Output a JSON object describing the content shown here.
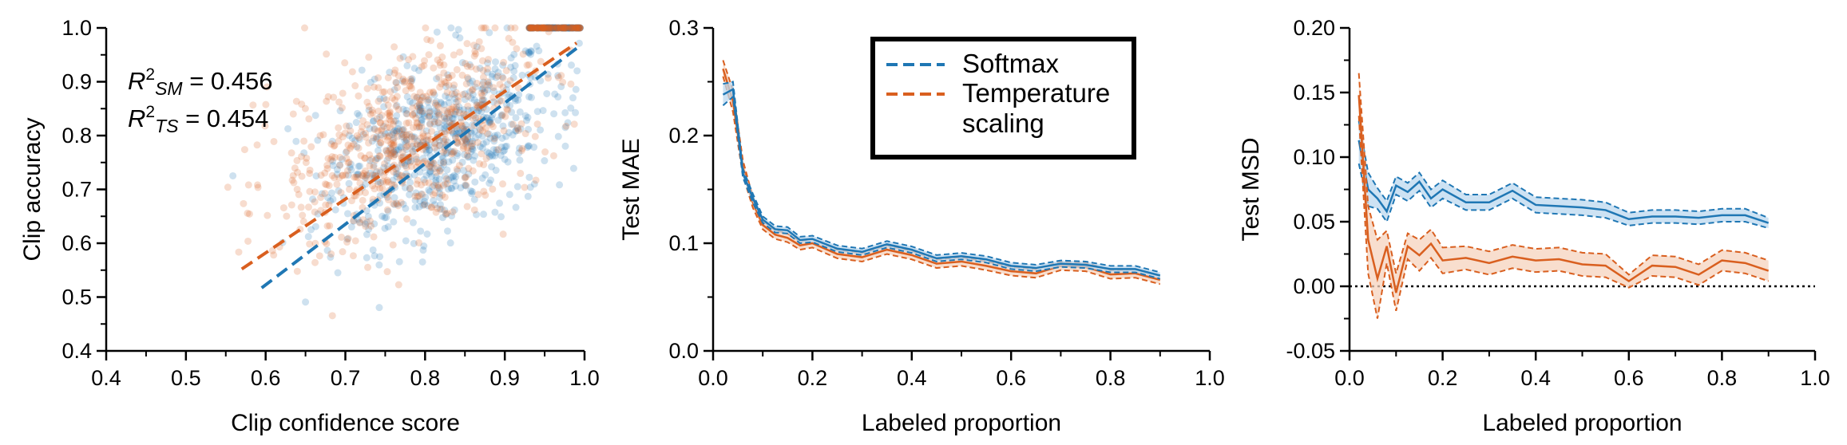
{
  "colors": {
    "softmax": "#1f77b4",
    "temperature": "#d95f1f",
    "softmax_fill": "#bcd8ef",
    "temperature_fill": "#f6d3bd"
  },
  "chart_data": [
    {
      "type": "scatter",
      "xlabel": "Clip confidence score",
      "ylabel": "Clip accuracy",
      "xlim": [
        0.4,
        1.0
      ],
      "ylim": [
        0.4,
        1.0
      ],
      "xticks": [
        "0.4",
        "0.5",
        "0.6",
        "0.7",
        "0.8",
        "0.9",
        "1.0"
      ],
      "yticks": [
        "0.4",
        "0.5",
        "0.6",
        "0.7",
        "0.8",
        "0.9",
        "1.0"
      ],
      "annotations": [
        {
          "base": "R",
          "sup": "2",
          "sub": "SM",
          "text": " = 0.456"
        },
        {
          "base": "R",
          "sup": "2",
          "sub": "TS",
          "text": " = 0.454"
        }
      ],
      "series": [
        {
          "key": "softmax",
          "scatter_center": [
            0.82,
            0.78
          ],
          "scatter_spread": [
            0.075,
            0.11
          ],
          "fit_line": [
            [
              0.595,
              0.517
            ],
            [
              0.99,
              0.962
            ]
          ]
        },
        {
          "key": "temperature",
          "scatter_center": [
            0.78,
            0.79
          ],
          "scatter_spread": [
            0.085,
            0.115
          ],
          "fit_line": [
            [
              0.57,
              0.552
            ],
            [
              0.99,
              0.972
            ]
          ]
        }
      ],
      "grid": false
    },
    {
      "type": "line",
      "xlabel": "Labeled proportion",
      "ylabel": "Test MAE",
      "xlim": [
        0.0,
        1.0
      ],
      "ylim": [
        0.0,
        0.3
      ],
      "xticks": [
        "0.0",
        "0.2",
        "0.4",
        "0.6",
        "0.8",
        "1.0"
      ],
      "yticks": [
        "0.0",
        "0.1",
        "0.2",
        "0.3"
      ],
      "legend": {
        "placement": "top-center",
        "entries": [
          {
            "key": "softmax",
            "lines": [
              "Softmax"
            ]
          },
          {
            "key": "temperature",
            "lines": [
              "Temperature",
              "scaling"
            ]
          }
        ]
      },
      "x": [
        0.02,
        0.04,
        0.06,
        0.08,
        0.1,
        0.125,
        0.15,
        0.175,
        0.2,
        0.25,
        0.3,
        0.35,
        0.4,
        0.45,
        0.5,
        0.55,
        0.6,
        0.65,
        0.7,
        0.75,
        0.8,
        0.85,
        0.9
      ],
      "series": [
        {
          "key": "softmax",
          "values": [
            0.238,
            0.243,
            0.165,
            0.142,
            0.122,
            0.113,
            0.112,
            0.103,
            0.104,
            0.095,
            0.092,
            0.099,
            0.094,
            0.086,
            0.088,
            0.085,
            0.079,
            0.077,
            0.081,
            0.08,
            0.076,
            0.076,
            0.07
          ],
          "lower": [
            0.228,
            0.236,
            0.161,
            0.138,
            0.119,
            0.11,
            0.109,
            0.1,
            0.101,
            0.092,
            0.089,
            0.096,
            0.091,
            0.083,
            0.085,
            0.082,
            0.076,
            0.074,
            0.078,
            0.077,
            0.073,
            0.073,
            0.067
          ],
          "upper": [
            0.248,
            0.25,
            0.169,
            0.146,
            0.125,
            0.116,
            0.115,
            0.106,
            0.107,
            0.098,
            0.095,
            0.102,
            0.097,
            0.089,
            0.091,
            0.088,
            0.082,
            0.08,
            0.084,
            0.083,
            0.079,
            0.079,
            0.073
          ]
        },
        {
          "key": "temperature",
          "values": [
            0.262,
            0.232,
            0.17,
            0.138,
            0.117,
            0.108,
            0.105,
            0.098,
            0.1,
            0.09,
            0.087,
            0.094,
            0.089,
            0.081,
            0.083,
            0.079,
            0.074,
            0.072,
            0.079,
            0.078,
            0.071,
            0.072,
            0.066
          ],
          "lower": [
            0.255,
            0.222,
            0.163,
            0.133,
            0.113,
            0.104,
            0.101,
            0.094,
            0.096,
            0.086,
            0.083,
            0.09,
            0.085,
            0.077,
            0.079,
            0.075,
            0.07,
            0.068,
            0.075,
            0.074,
            0.067,
            0.068,
            0.062
          ],
          "upper": [
            0.27,
            0.242,
            0.177,
            0.143,
            0.121,
            0.112,
            0.109,
            0.102,
            0.104,
            0.094,
            0.091,
            0.098,
            0.093,
            0.085,
            0.087,
            0.083,
            0.078,
            0.076,
            0.083,
            0.082,
            0.075,
            0.076,
            0.07
          ]
        }
      ],
      "grid": false
    },
    {
      "type": "line",
      "xlabel": "Labeled proportion",
      "ylabel": "Test MSD",
      "xlim": [
        0.0,
        1.0
      ],
      "ylim": [
        -0.05,
        0.2
      ],
      "xticks": [
        "0.0",
        "0.2",
        "0.4",
        "0.6",
        "0.8",
        "1.0"
      ],
      "yticks": [
        "-0.05",
        "0.00",
        "0.05",
        "0.10",
        "0.15",
        "0.20"
      ],
      "reference_line": 0.0,
      "x": [
        0.02,
        0.04,
        0.06,
        0.08,
        0.1,
        0.125,
        0.15,
        0.175,
        0.2,
        0.25,
        0.3,
        0.35,
        0.4,
        0.45,
        0.5,
        0.55,
        0.6,
        0.65,
        0.7,
        0.75,
        0.8,
        0.85,
        0.9
      ],
      "series": [
        {
          "key": "softmax",
          "values": [
            0.113,
            0.075,
            0.068,
            0.058,
            0.078,
            0.073,
            0.081,
            0.068,
            0.075,
            0.065,
            0.065,
            0.074,
            0.063,
            0.062,
            0.061,
            0.059,
            0.052,
            0.054,
            0.054,
            0.053,
            0.055,
            0.055,
            0.049
          ],
          "lower": [
            0.095,
            0.062,
            0.06,
            0.05,
            0.071,
            0.066,
            0.074,
            0.061,
            0.068,
            0.059,
            0.059,
            0.068,
            0.057,
            0.056,
            0.055,
            0.053,
            0.047,
            0.049,
            0.049,
            0.048,
            0.05,
            0.05,
            0.045
          ],
          "upper": [
            0.128,
            0.088,
            0.076,
            0.066,
            0.085,
            0.08,
            0.088,
            0.075,
            0.082,
            0.071,
            0.071,
            0.08,
            0.069,
            0.068,
            0.067,
            0.065,
            0.057,
            0.059,
            0.059,
            0.058,
            0.06,
            0.06,
            0.053
          ]
        },
        {
          "key": "temperature",
          "values": [
            0.148,
            0.036,
            0.006,
            0.031,
            -0.005,
            0.031,
            0.024,
            0.033,
            0.02,
            0.022,
            0.018,
            0.023,
            0.02,
            0.021,
            0.017,
            0.016,
            0.004,
            0.016,
            0.015,
            0.009,
            0.02,
            0.018,
            0.012
          ],
          "lower": [
            0.132,
            0.01,
            -0.025,
            0.018,
            -0.019,
            0.021,
            0.012,
            0.022,
            0.01,
            0.013,
            0.009,
            0.014,
            0.011,
            0.012,
            0.008,
            0.007,
            -0.001,
            0.008,
            0.007,
            0.001,
            0.012,
            0.01,
            0.004
          ],
          "upper": [
            0.165,
            0.062,
            0.036,
            0.043,
            0.01,
            0.041,
            0.036,
            0.044,
            0.03,
            0.031,
            0.027,
            0.032,
            0.029,
            0.03,
            0.026,
            0.025,
            0.009,
            0.024,
            0.023,
            0.017,
            0.028,
            0.026,
            0.02
          ]
        }
      ],
      "grid": false
    }
  ]
}
